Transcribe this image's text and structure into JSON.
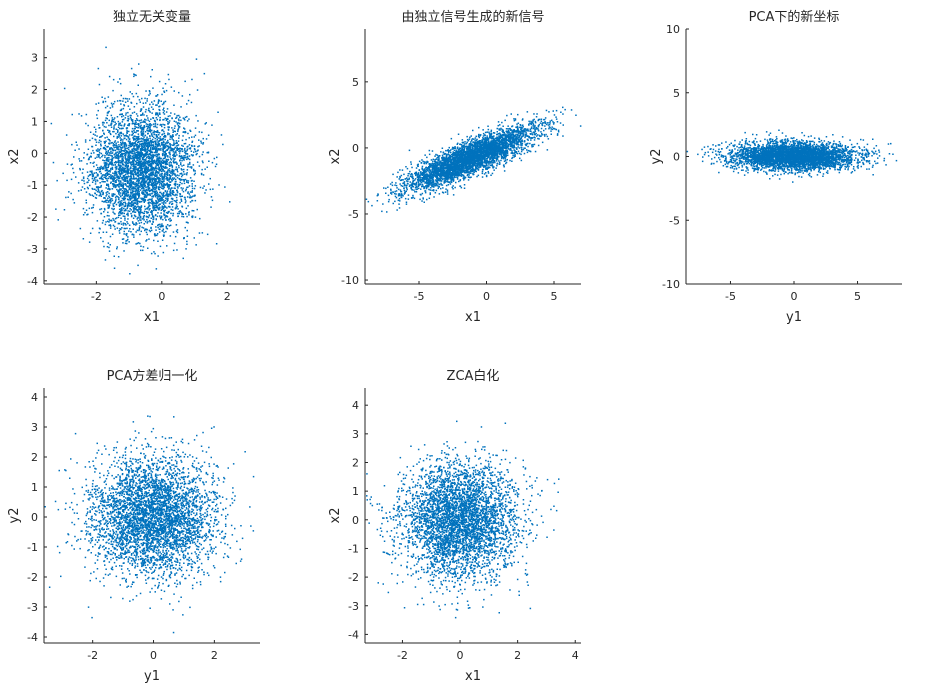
{
  "chart_data": [
    {
      "type": "scatter",
      "title": "独立无关变量",
      "xlabel": "x1",
      "ylabel": "x2",
      "xlim": [
        -3.6,
        3.0
      ],
      "ylim": [
        -4.1,
        3.9
      ],
      "xticks": [
        -2,
        0,
        2
      ],
      "yticks": [
        -4,
        -3,
        -2,
        -1,
        0,
        1,
        2,
        3
      ],
      "color": "#0072BD",
      "distribution": {
        "n": 4000,
        "mean": [
          -0.6,
          -0.5
        ],
        "std": [
          0.8,
          1.0
        ],
        "corr": 0.0,
        "seed": 11
      }
    },
    {
      "type": "scatter",
      "title": "由独立信号生成的新信号",
      "xlabel": "x1",
      "ylabel": "x2",
      "xlim": [
        -9.0,
        7.0
      ],
      "ylim": [
        -10.3,
        9.0
      ],
      "xticks": [
        -5,
        0,
        5
      ],
      "yticks": [
        -10,
        -5,
        0,
        5
      ],
      "color": "#0072BD",
      "distribution": {
        "n": 4000,
        "mean": [
          -1.2,
          -0.8
        ],
        "std": [
          2.4,
          1.2
        ],
        "corr": 0.85,
        "seed": 23
      }
    },
    {
      "type": "scatter",
      "title": "PCA下的新坐标",
      "xlabel": "y1",
      "ylabel": "y2",
      "xlim": [
        -8.5,
        8.5
      ],
      "ylim": [
        -10.0,
        10.0
      ],
      "xticks": [
        -5,
        0,
        5
      ],
      "yticks": [
        -10,
        -5,
        0,
        5,
        10
      ],
      "color": "#0072BD",
      "distribution": {
        "n": 4000,
        "mean": [
          0,
          0
        ],
        "std": [
          2.5,
          0.55
        ],
        "corr": 0.0,
        "seed": 37
      }
    },
    {
      "type": "scatter",
      "title": "PCA方差归一化",
      "xlabel": "y1",
      "ylabel": "y2",
      "xlim": [
        -3.6,
        3.5
      ],
      "ylim": [
        -4.2,
        4.3
      ],
      "xticks": [
        -2,
        0,
        2
      ],
      "yticks": [
        -4,
        -3,
        -2,
        -1,
        0,
        1,
        2,
        3,
        4
      ],
      "color": "#0072BD",
      "distribution": {
        "n": 4000,
        "mean": [
          0,
          0
        ],
        "std": [
          1.0,
          1.0
        ],
        "corr": 0.0,
        "seed": 41
      }
    },
    {
      "type": "scatter",
      "title": "ZCA白化",
      "xlabel": "x1",
      "ylabel": "x2",
      "xlim": [
        -3.3,
        4.2
      ],
      "ylim": [
        -4.3,
        4.6
      ],
      "xticks": [
        -2,
        0,
        2,
        4
      ],
      "yticks": [
        -4,
        -3,
        -2,
        -1,
        0,
        1,
        2,
        3,
        4
      ],
      "color": "#0072BD",
      "distribution": {
        "n": 4000,
        "mean": [
          0,
          0
        ],
        "std": [
          1.0,
          1.0
        ],
        "corr": 0.0,
        "seed": 53
      }
    }
  ]
}
